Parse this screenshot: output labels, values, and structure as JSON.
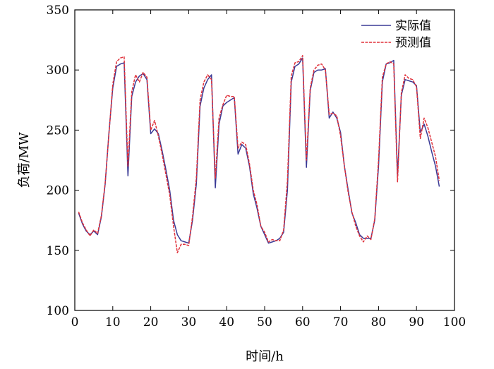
{
  "chart_data": {
    "type": "line",
    "title": "",
    "xlabel": "时间/h",
    "ylabel": "负荷/MW",
    "xlim": [
      0,
      100
    ],
    "ylim": [
      100,
      350
    ],
    "xticks": [
      0,
      10,
      20,
      30,
      40,
      50,
      60,
      70,
      80,
      90,
      100
    ],
    "yticks": [
      100,
      150,
      200,
      250,
      300,
      350
    ],
    "grid": false,
    "legend_position": "top-right",
    "x": [
      1,
      2,
      3,
      4,
      5,
      6,
      7,
      8,
      9,
      10,
      11,
      12,
      13,
      14,
      15,
      16,
      17,
      18,
      19,
      20,
      21,
      22,
      23,
      24,
      25,
      26,
      27,
      28,
      29,
      30,
      31,
      32,
      33,
      34,
      35,
      36,
      37,
      38,
      39,
      40,
      41,
      42,
      43,
      44,
      45,
      46,
      47,
      48,
      49,
      50,
      51,
      52,
      53,
      54,
      55,
      56,
      57,
      58,
      59,
      60,
      61,
      62,
      63,
      64,
      65,
      66,
      67,
      68,
      69,
      70,
      71,
      72,
      73,
      74,
      75,
      76,
      77,
      78,
      79,
      80,
      81,
      82,
      83,
      84,
      85,
      86,
      87,
      88,
      89,
      90,
      91,
      92,
      93,
      94,
      95,
      96
    ],
    "series": [
      {
        "name": "实际值",
        "color": "#3b3b96",
        "values": [
          181,
          172,
          166,
          163,
          166,
          163,
          178,
          205,
          248,
          285,
          303,
          305,
          306,
          212,
          278,
          290,
          295,
          297,
          292,
          247,
          251,
          247,
          233,
          217,
          200,
          175,
          163,
          158,
          157,
          156,
          175,
          205,
          270,
          285,
          292,
          296,
          202,
          255,
          270,
          273,
          275,
          277,
          230,
          238,
          235,
          220,
          197,
          185,
          170,
          163,
          156,
          157,
          158,
          160,
          165,
          200,
          290,
          303,
          305,
          310,
          219,
          283,
          298,
          300,
          300,
          301,
          260,
          265,
          260,
          248,
          220,
          200,
          181,
          173,
          163,
          160,
          160,
          160,
          175,
          220,
          290,
          305,
          306,
          308,
          212,
          279,
          292,
          291,
          290,
          287,
          248,
          255,
          245,
          232,
          220,
          203
        ]
      },
      {
        "name": "预测值",
        "color": "#e0303a",
        "values": [
          182,
          173,
          167,
          162,
          167,
          164,
          179,
          206,
          247,
          288,
          307,
          310,
          311,
          220,
          282,
          296,
          290,
          298,
          294,
          250,
          258,
          245,
          230,
          213,
          196,
          170,
          148,
          155,
          155,
          154,
          178,
          210,
          275,
          290,
          296,
          292,
          210,
          260,
          271,
          279,
          278,
          278,
          235,
          240,
          238,
          222,
          200,
          188,
          170,
          165,
          157,
          159,
          158,
          158,
          167,
          208,
          295,
          306,
          307,
          312,
          225,
          285,
          300,
          304,
          305,
          300,
          263,
          264,
          262,
          245,
          220,
          198,
          182,
          170,
          162,
          157,
          162,
          159,
          176,
          225,
          294,
          305,
          307,
          305,
          207,
          281,
          296,
          293,
          292,
          286,
          243,
          260,
          252,
          240,
          228,
          208
        ]
      }
    ]
  }
}
